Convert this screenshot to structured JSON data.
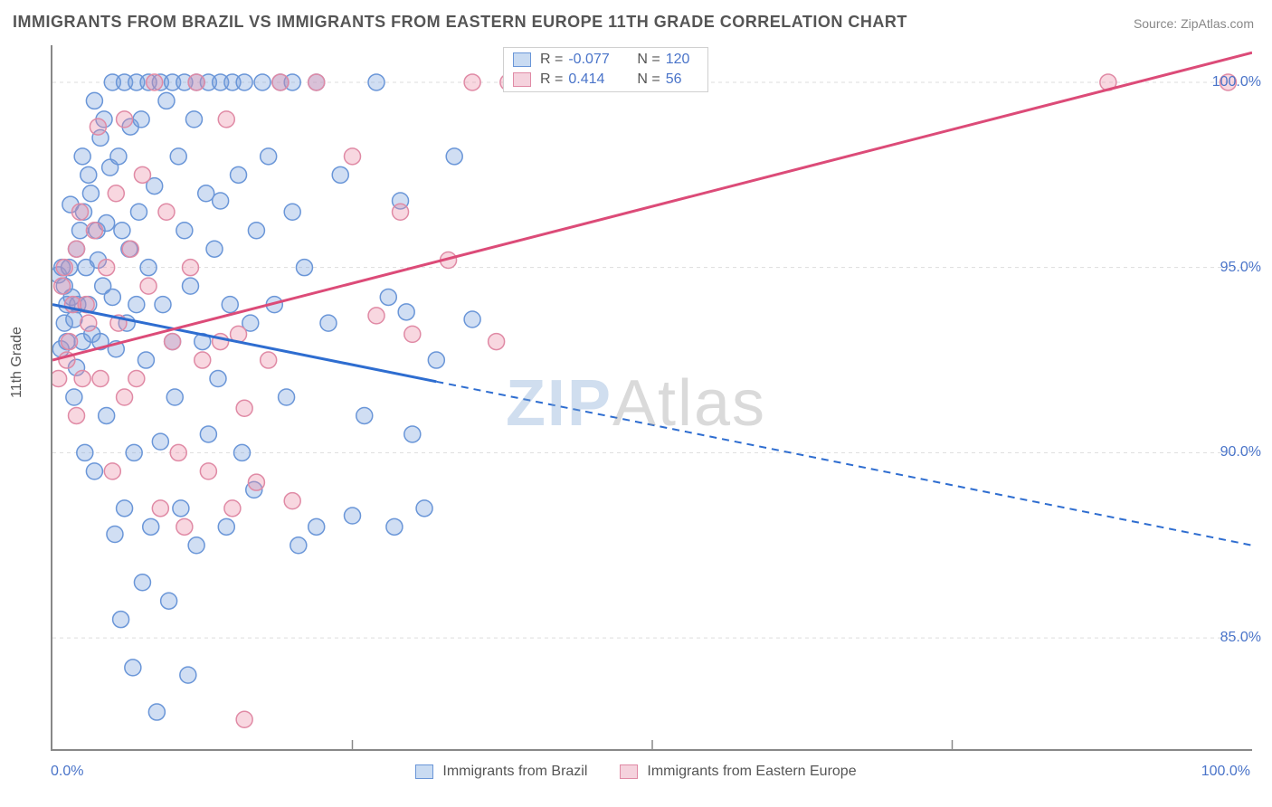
{
  "title": "IMMIGRANTS FROM BRAZIL VS IMMIGRANTS FROM EASTERN EUROPE 11TH GRADE CORRELATION CHART",
  "source": "Source: ZipAtlas.com",
  "ylabel": "11th Grade",
  "watermark_a": "ZIP",
  "watermark_b": "Atlas",
  "xaxis": {
    "min": 0,
    "max": 100,
    "ticks": [
      0,
      100
    ],
    "tick_labels": [
      "0.0%",
      "100.0%"
    ],
    "minor_ticks": [
      25,
      50,
      75
    ]
  },
  "yaxis": {
    "min": 82,
    "max": 101,
    "ticks": [
      85,
      90,
      95,
      100
    ],
    "tick_labels": [
      "85.0%",
      "90.0%",
      "95.0%",
      "100.0%"
    ]
  },
  "grid_color": "#dddddd",
  "background_color": "#ffffff",
  "series": [
    {
      "name": "Immigrants from Brazil",
      "color_fill": "rgba(120,160,220,0.35)",
      "color_stroke": "#6a96d8",
      "swatch_fill": "#c9dbf2",
      "swatch_border": "#6a96d8",
      "line_color": "#2e6dd0",
      "R": "-0.077",
      "N": "120",
      "line": {
        "y_at_x0": 94.0,
        "y_at_x100": 87.5,
        "solid_until_x": 32
      },
      "points": [
        [
          0.5,
          94.8
        ],
        [
          0.7,
          92.8
        ],
        [
          0.8,
          95.0
        ],
        [
          1.0,
          93.5
        ],
        [
          1.0,
          94.5
        ],
        [
          1.2,
          94.0
        ],
        [
          1.2,
          93.0
        ],
        [
          1.4,
          95.0
        ],
        [
          1.5,
          96.7
        ],
        [
          1.6,
          94.2
        ],
        [
          1.8,
          91.5
        ],
        [
          1.8,
          93.6
        ],
        [
          2.0,
          95.5
        ],
        [
          2.0,
          92.3
        ],
        [
          2.1,
          94.0
        ],
        [
          2.3,
          96.0
        ],
        [
          2.5,
          98.0
        ],
        [
          2.5,
          93.0
        ],
        [
          2.6,
          96.5
        ],
        [
          2.7,
          90.0
        ],
        [
          2.8,
          95.0
        ],
        [
          3.0,
          94.0
        ],
        [
          3.0,
          97.5
        ],
        [
          3.2,
          97.0
        ],
        [
          3.3,
          93.2
        ],
        [
          3.5,
          99.5
        ],
        [
          3.5,
          89.5
        ],
        [
          3.7,
          96.0
        ],
        [
          3.8,
          95.2
        ],
        [
          4.0,
          98.5
        ],
        [
          4.0,
          93.0
        ],
        [
          4.2,
          94.5
        ],
        [
          4.3,
          99.0
        ],
        [
          4.5,
          96.2
        ],
        [
          4.5,
          91.0
        ],
        [
          4.8,
          97.7
        ],
        [
          5.0,
          100.0
        ],
        [
          5.0,
          94.2
        ],
        [
          5.2,
          87.8
        ],
        [
          5.3,
          92.8
        ],
        [
          5.5,
          98.0
        ],
        [
          5.7,
          85.5
        ],
        [
          5.8,
          96.0
        ],
        [
          6.0,
          100.0
        ],
        [
          6.0,
          88.5
        ],
        [
          6.2,
          93.5
        ],
        [
          6.4,
          95.5
        ],
        [
          6.5,
          98.8
        ],
        [
          6.7,
          84.2
        ],
        [
          6.8,
          90.0
        ],
        [
          7.0,
          100.0
        ],
        [
          7.0,
          94.0
        ],
        [
          7.2,
          96.5
        ],
        [
          7.4,
          99.0
        ],
        [
          7.5,
          86.5
        ],
        [
          7.8,
          92.5
        ],
        [
          8.0,
          100.0
        ],
        [
          8.0,
          95.0
        ],
        [
          8.2,
          88.0
        ],
        [
          8.5,
          97.2
        ],
        [
          8.7,
          83.0
        ],
        [
          9.0,
          100.0
        ],
        [
          9.0,
          90.3
        ],
        [
          9.2,
          94.0
        ],
        [
          9.5,
          99.5
        ],
        [
          9.7,
          86.0
        ],
        [
          10.0,
          100.0
        ],
        [
          10.0,
          93.0
        ],
        [
          10.2,
          91.5
        ],
        [
          10.5,
          98.0
        ],
        [
          10.7,
          88.5
        ],
        [
          11.0,
          100.0
        ],
        [
          11.0,
          96.0
        ],
        [
          11.3,
          84.0
        ],
        [
          11.5,
          94.5
        ],
        [
          11.8,
          99.0
        ],
        [
          12.0,
          100.0
        ],
        [
          12.0,
          87.5
        ],
        [
          12.5,
          93.0
        ],
        [
          12.8,
          97.0
        ],
        [
          13.0,
          100.0
        ],
        [
          13.0,
          90.5
        ],
        [
          13.5,
          95.5
        ],
        [
          13.8,
          92.0
        ],
        [
          14.0,
          100.0
        ],
        [
          14.0,
          96.8
        ],
        [
          14.5,
          88.0
        ],
        [
          14.8,
          94.0
        ],
        [
          15.0,
          100.0
        ],
        [
          15.5,
          97.5
        ],
        [
          15.8,
          90.0
        ],
        [
          16.0,
          100.0
        ],
        [
          16.5,
          93.5
        ],
        [
          16.8,
          89.0
        ],
        [
          17.0,
          96.0
        ],
        [
          17.5,
          100.0
        ],
        [
          18.0,
          98.0
        ],
        [
          18.5,
          94.0
        ],
        [
          19.0,
          100.0
        ],
        [
          19.5,
          91.5
        ],
        [
          20.0,
          100.0
        ],
        [
          20.0,
          96.5
        ],
        [
          20.5,
          87.5
        ],
        [
          21.0,
          95.0
        ],
        [
          22.0,
          100.0
        ],
        [
          22.0,
          88.0
        ],
        [
          23.0,
          93.5
        ],
        [
          24.0,
          97.5
        ],
        [
          25.0,
          88.3
        ],
        [
          26.0,
          91.0
        ],
        [
          27.0,
          100.0
        ],
        [
          28.0,
          94.2
        ],
        [
          28.5,
          88.0
        ],
        [
          29.0,
          96.8
        ],
        [
          29.5,
          93.8
        ],
        [
          30.0,
          90.5
        ],
        [
          31.0,
          88.5
        ],
        [
          32.0,
          92.5
        ],
        [
          33.5,
          98.0
        ],
        [
          35.0,
          93.6
        ]
      ]
    },
    {
      "name": "Immigrants from Eastern Europe",
      "color_fill": "rgba(235,140,165,0.35)",
      "color_stroke": "#e08aa5",
      "swatch_fill": "#f5d2dd",
      "swatch_border": "#e08aa5",
      "line_color": "#dc4b78",
      "R": "0.414",
      "N": "56",
      "line": {
        "y_at_x0": 92.5,
        "y_at_x100": 100.8,
        "solid_until_x": 100
      },
      "points": [
        [
          0.5,
          92.0
        ],
        [
          0.8,
          94.5
        ],
        [
          1.0,
          95.0
        ],
        [
          1.2,
          92.5
        ],
        [
          1.4,
          93.0
        ],
        [
          1.7,
          94.0
        ],
        [
          2.0,
          91.0
        ],
        [
          2.0,
          95.5
        ],
        [
          2.3,
          96.5
        ],
        [
          2.5,
          92.0
        ],
        [
          2.8,
          94.0
        ],
        [
          3.0,
          93.5
        ],
        [
          3.5,
          96.0
        ],
        [
          3.8,
          98.8
        ],
        [
          4.0,
          92.0
        ],
        [
          4.5,
          95.0
        ],
        [
          5.0,
          89.5
        ],
        [
          5.3,
          97.0
        ],
        [
          5.5,
          93.5
        ],
        [
          6.0,
          99.0
        ],
        [
          6.0,
          91.5
        ],
        [
          6.5,
          95.5
        ],
        [
          7.0,
          92.0
        ],
        [
          7.5,
          97.5
        ],
        [
          8.0,
          94.5
        ],
        [
          8.5,
          100.0
        ],
        [
          9.0,
          88.5
        ],
        [
          9.5,
          96.5
        ],
        [
          10.0,
          93.0
        ],
        [
          10.5,
          90.0
        ],
        [
          11.0,
          88.0
        ],
        [
          11.5,
          95.0
        ],
        [
          12.0,
          100.0
        ],
        [
          12.5,
          92.5
        ],
        [
          13.0,
          89.5
        ],
        [
          14.0,
          93.0
        ],
        [
          14.5,
          99.0
        ],
        [
          15.0,
          88.5
        ],
        [
          15.5,
          93.2
        ],
        [
          16.0,
          91.2
        ],
        [
          16.0,
          82.8
        ],
        [
          17.0,
          89.2
        ],
        [
          18.0,
          92.5
        ],
        [
          19.0,
          100.0
        ],
        [
          20.0,
          88.7
        ],
        [
          22.0,
          100.0
        ],
        [
          25.0,
          98.0
        ],
        [
          27.0,
          93.7
        ],
        [
          29.0,
          96.5
        ],
        [
          30.0,
          93.2
        ],
        [
          33.0,
          95.2
        ],
        [
          35.0,
          100.0
        ],
        [
          37.0,
          93.0
        ],
        [
          38.0,
          100.0
        ],
        [
          88.0,
          100.0
        ],
        [
          98.0,
          100.0
        ]
      ]
    }
  ],
  "stats_labels": {
    "R": "R =",
    "N": "N ="
  },
  "marker_radius": 9,
  "marker_stroke_width": 1.5,
  "line_width": 3,
  "title_fontsize": 18,
  "label_fontsize": 16
}
